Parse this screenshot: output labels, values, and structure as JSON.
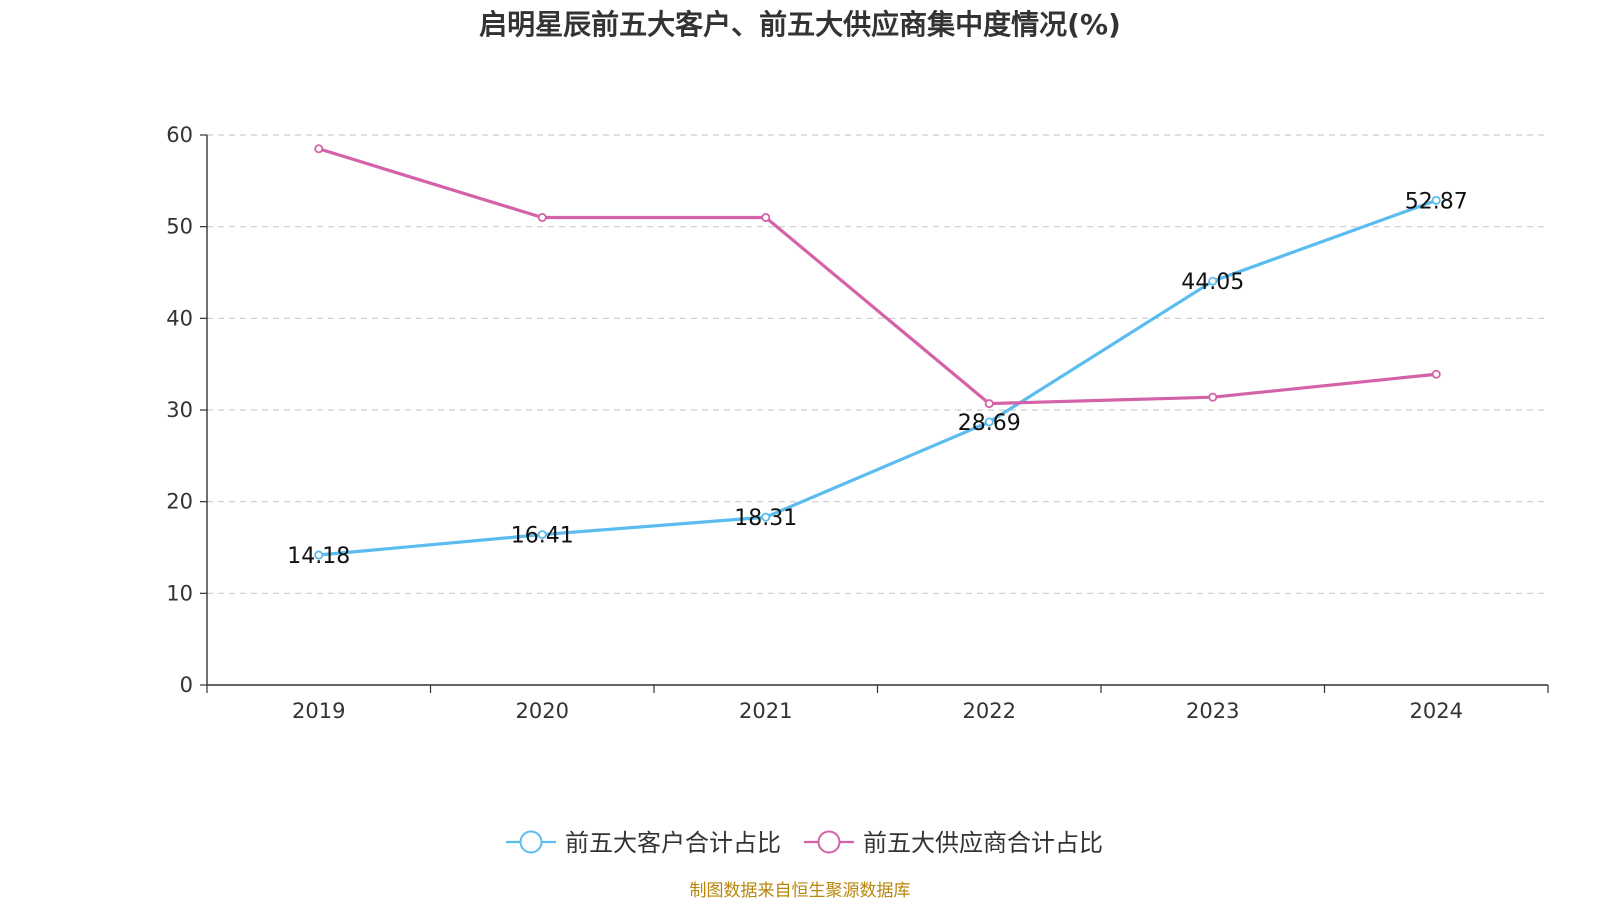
{
  "chart_data": {
    "type": "line",
    "title": "启明星辰前五大客户、前五大供应商集中度情况(%)",
    "categories": [
      "2019",
      "2020",
      "2021",
      "2022",
      "2023",
      "2024"
    ],
    "ylim": [
      0,
      60
    ],
    "yticks": [
      0,
      10,
      20,
      30,
      40,
      50,
      60
    ],
    "grid": true,
    "legend_position": "bottom-center",
    "series": [
      {
        "name": "前五大客户合计占比",
        "color": "#5bbcf0",
        "values": [
          14.18,
          16.41,
          18.31,
          28.69,
          44.05,
          52.87
        ],
        "labels": [
          "14.18",
          "16.41",
          "18.31",
          "28.69",
          "44.05",
          "52.87"
        ],
        "show_labels": true
      },
      {
        "name": "前五大供应商合计占比",
        "color": "#d462a8",
        "values": [
          58.5,
          51.0,
          51.0,
          30.7,
          31.4,
          33.9
        ],
        "show_labels": false
      }
    ],
    "source": "制图数据来自恒生聚源数据库"
  }
}
